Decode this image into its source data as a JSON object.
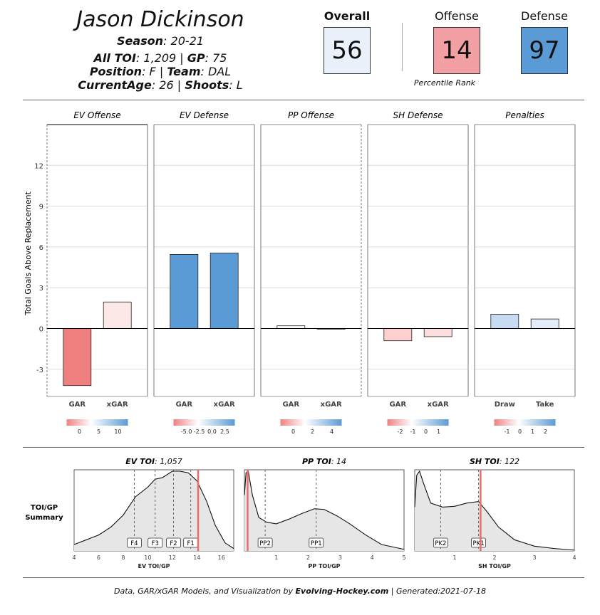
{
  "player": {
    "name": "Jason Dickinson",
    "season_label": "Season",
    "season": ": 20-21",
    "toi_label": "All TOI",
    "toi": ": 1,209 | ",
    "gp_label": "GP",
    "gp": ": 75",
    "position_label": "Position",
    "position": ": F | ",
    "team_label": "Team",
    "team": ": DAL",
    "age_label": "CurrentAge",
    "age": ": 26 | ",
    "shoots_label": "Shoots",
    "shoots": ": L"
  },
  "ratings": {
    "overall_label": "Overall",
    "overall": "56",
    "offense_label": "Offense",
    "offense": "14",
    "defense_label": "Defense",
    "defense": "97",
    "caption": "Percentile Rank",
    "colors": {
      "overall": "#eaf1fb",
      "offense": "#f2a0a3",
      "defense": "#5b9bd5"
    }
  },
  "footer": {
    "prefix": "Data, GAR/xGAR Models, and Visualization by ",
    "brand": "Evolving-Hockey.com",
    "suffix": " | Generated:2021-07-18"
  },
  "chart_data": [
    {
      "type": "bar",
      "title": "Total Goals Above Replacement",
      "ylabel": "Total Goals Above Replacement",
      "ylim": [
        -5,
        15
      ],
      "yticks": [
        -3,
        0,
        3,
        6,
        9,
        12
      ],
      "panels": [
        {
          "title": "EV Offense",
          "categories": [
            "GAR",
            "xGAR"
          ],
          "values": [
            -4.2,
            1.95
          ],
          "colors": [
            "#f08080",
            "#fde8e8"
          ],
          "legend": {
            "ticks": [
              "0",
              "5",
              "10"
            ]
          }
        },
        {
          "title": "EV Defense",
          "categories": [
            "GAR",
            "xGAR"
          ],
          "values": [
            5.45,
            5.55
          ],
          "colors": [
            "#5b9bd5",
            "#5b9bd5"
          ],
          "legend": {
            "ticks": [
              "-5.0",
              "-2.5",
              "0.0",
              "2.5"
            ]
          }
        },
        {
          "title": "PP Offense",
          "categories": [
            "GAR",
            "xGAR"
          ],
          "values": [
            0.2,
            -0.05
          ],
          "colors": [
            "#ffffff",
            "#ffffff"
          ],
          "legend": {
            "ticks": [
              "0",
              "2",
              "4"
            ]
          }
        },
        {
          "title": "SH Defense",
          "categories": [
            "GAR",
            "xGAR"
          ],
          "values": [
            -0.9,
            -0.6
          ],
          "colors": [
            "#fdcfcf",
            "#fddede"
          ],
          "legend": {
            "ticks": [
              "-2",
              "-1",
              "0",
              "1"
            ]
          }
        },
        {
          "title": "Penalties",
          "categories": [
            "Draw",
            "Take"
          ],
          "values": [
            1.05,
            0.7
          ],
          "colors": [
            "#c7dbf2",
            "#e3ecf8"
          ],
          "legend": {
            "ticks": [
              "-1",
              "0",
              "1",
              "2"
            ]
          }
        }
      ]
    },
    {
      "type": "area",
      "label": "TOI/GP\nSummary",
      "panels": [
        {
          "title_label": "EV TOI",
          "title_value": ": 1,057",
          "xlabel": "EV TOI/GP",
          "xlim": [
            4,
            17
          ],
          "xticks": [
            4,
            6,
            8,
            10,
            12,
            14,
            16
          ],
          "player_value": 14.1,
          "density": [
            [
              4,
              0.08
            ],
            [
              5,
              0.14
            ],
            [
              6,
              0.2
            ],
            [
              7,
              0.3
            ],
            [
              8,
              0.45
            ],
            [
              9,
              0.68
            ],
            [
              10,
              0.8
            ],
            [
              10.6,
              0.9
            ],
            [
              11.2,
              0.92
            ],
            [
              12,
              1.0
            ],
            [
              12.6,
              1.0
            ],
            [
              13.3,
              0.98
            ],
            [
              14,
              0.88
            ],
            [
              14.8,
              0.62
            ],
            [
              15.5,
              0.32
            ],
            [
              16.3,
              0.1
            ],
            [
              17,
              0.03
            ]
          ],
          "markers": [
            {
              "label": "F4",
              "x": 8.9
            },
            {
              "label": "F3",
              "x": 10.6
            },
            {
              "label": "F2",
              "x": 12.1
            },
            {
              "label": "F1",
              "x": 13.5
            }
          ]
        },
        {
          "title_label": "PP TOI",
          "title_value": ": 14",
          "xlabel": "PP TOI/GP",
          "xlim": [
            0,
            5
          ],
          "xticks": [
            1,
            2,
            3,
            4,
            5
          ],
          "player_value": 0.1,
          "density": [
            [
              0,
              0.7
            ],
            [
              0.05,
              0.98
            ],
            [
              0.12,
              1.0
            ],
            [
              0.25,
              0.7
            ],
            [
              0.45,
              0.42
            ],
            [
              0.7,
              0.36
            ],
            [
              1.0,
              0.34
            ],
            [
              1.4,
              0.4
            ],
            [
              1.8,
              0.47
            ],
            [
              2.2,
              0.53
            ],
            [
              2.5,
              0.52
            ],
            [
              2.9,
              0.44
            ],
            [
              3.3,
              0.34
            ],
            [
              3.8,
              0.2
            ],
            [
              4.3,
              0.08
            ],
            [
              5,
              0.02
            ]
          ],
          "markers": [
            {
              "label": "PP2",
              "x": 0.65
            },
            {
              "label": "PP1",
              "x": 2.25
            }
          ]
        },
        {
          "title_label": "SH TOI",
          "title_value": ": 122",
          "xlabel": "SH TOI/GP",
          "xlim": [
            0,
            4
          ],
          "xticks": [
            1,
            2,
            3,
            4
          ],
          "player_value": 1.65,
          "density": [
            [
              0,
              0.55
            ],
            [
              0.05,
              0.95
            ],
            [
              0.12,
              1.0
            ],
            [
              0.22,
              0.85
            ],
            [
              0.4,
              0.6
            ],
            [
              0.7,
              0.55
            ],
            [
              1.0,
              0.56
            ],
            [
              1.3,
              0.6
            ],
            [
              1.6,
              0.62
            ],
            [
              1.8,
              0.5
            ],
            [
              2.1,
              0.3
            ],
            [
              2.5,
              0.14
            ],
            [
              3.0,
              0.06
            ],
            [
              3.5,
              0.03
            ],
            [
              4,
              0.01
            ]
          ],
          "markers": [
            {
              "label": "PK2",
              "x": 0.65
            },
            {
              "label": "PK1",
              "x": 1.6
            }
          ]
        }
      ]
    }
  ]
}
